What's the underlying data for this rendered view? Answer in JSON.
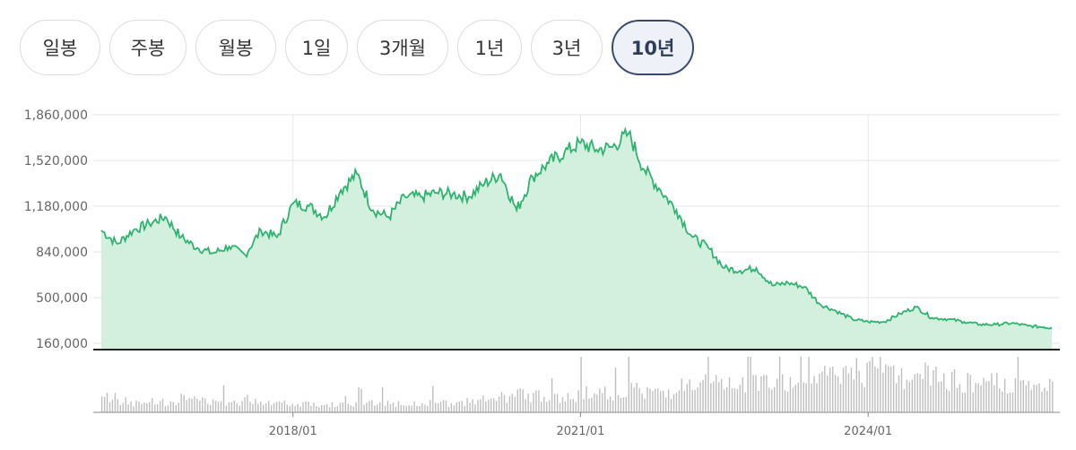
{
  "tabs": [
    {
      "label": "일봉",
      "active": false
    },
    {
      "label": "주봉",
      "active": false
    },
    {
      "label": "월봉",
      "active": false
    },
    {
      "label": "1일",
      "active": false
    },
    {
      "label": "3개월",
      "active": false
    },
    {
      "label": "1년",
      "active": false
    },
    {
      "label": "3년",
      "active": false
    },
    {
      "label": "10년",
      "active": true
    }
  ],
  "colors": {
    "line": "#2fb36f",
    "area": "#d3f0df",
    "volume": "#bfbfbf",
    "grid": "#e6e6e6",
    "active_tab_border": "#3a4a6b"
  },
  "chart_data": {
    "type": "area",
    "title": "",
    "xlabel": "",
    "ylabel": "",
    "ylim": [
      160000,
      1860000
    ],
    "yticks": [
      "1,860,000",
      "1,520,000",
      "1,180,000",
      "840,000",
      "500,000",
      "160,000"
    ],
    "yticks_values": [
      1860000,
      1520000,
      1180000,
      840000,
      500000,
      160000
    ],
    "xlim": [
      "2015-12",
      "2026-01"
    ],
    "xticks": [
      "2018/01",
      "2021/01",
      "2024/01"
    ],
    "grid": true,
    "legend": "none",
    "price_series": {
      "x": [
        "2016-01",
        "2016-03",
        "2016-05",
        "2016-07",
        "2016-09",
        "2016-11",
        "2017-01",
        "2017-03",
        "2017-05",
        "2017-07",
        "2017-09",
        "2017-11",
        "2018-01",
        "2018-03",
        "2018-05",
        "2018-07",
        "2018-09",
        "2018-11",
        "2019-01",
        "2019-03",
        "2019-05",
        "2019-07",
        "2019-09",
        "2019-11",
        "2020-01",
        "2020-03",
        "2020-05",
        "2020-07",
        "2020-09",
        "2020-11",
        "2021-01",
        "2021-03",
        "2021-05",
        "2021-07",
        "2021-09",
        "2021-11",
        "2022-01",
        "2022-03",
        "2022-05",
        "2022-07",
        "2022-09",
        "2022-11",
        "2023-01",
        "2023-03",
        "2023-05",
        "2023-07",
        "2023-09",
        "2023-11",
        "2024-01",
        "2024-03",
        "2024-05",
        "2024-07",
        "2024-09",
        "2024-11",
        "2025-01",
        "2025-03",
        "2025-05",
        "2025-07",
        "2025-09",
        "2025-11",
        "2025-12"
      ],
      "y": [
        1000000,
        900000,
        1000000,
        1050000,
        1100000,
        950000,
        870000,
        830000,
        880000,
        820000,
        1000000,
        950000,
        1200000,
        1180000,
        1100000,
        1300000,
        1420000,
        1150000,
        1100000,
        1250000,
        1250000,
        1280000,
        1270000,
        1250000,
        1350000,
        1420000,
        1150000,
        1400000,
        1500000,
        1580000,
        1650000,
        1600000,
        1620000,
        1720000,
        1450000,
        1300000,
        1150000,
        950000,
        870000,
        720000,
        700000,
        720000,
        590000,
        610000,
        580000,
        450000,
        400000,
        340000,
        320000,
        320000,
        380000,
        430000,
        350000,
        340000,
        320000,
        300000,
        300000,
        310000,
        290000,
        280000,
        275000
      ]
    },
    "volume_series": {
      "note_free": true,
      "x_start": "2016-01",
      "x_end": "2025-12",
      "values": [
        30,
        22,
        18,
        25,
        20,
        28,
        24,
        19,
        22,
        26,
        21,
        20,
        18,
        17,
        16,
        15,
        17,
        19,
        18,
        16,
        20,
        18,
        17,
        22,
        25,
        30,
        35,
        32,
        28,
        30,
        38,
        40,
        36,
        45,
        42,
        38,
        50,
        48,
        55,
        52,
        58,
        60,
        62,
        58,
        65,
        70,
        75,
        80,
        82,
        78,
        70,
        72,
        68,
        64,
        60,
        55,
        58,
        52,
        50,
        48
      ]
    }
  }
}
